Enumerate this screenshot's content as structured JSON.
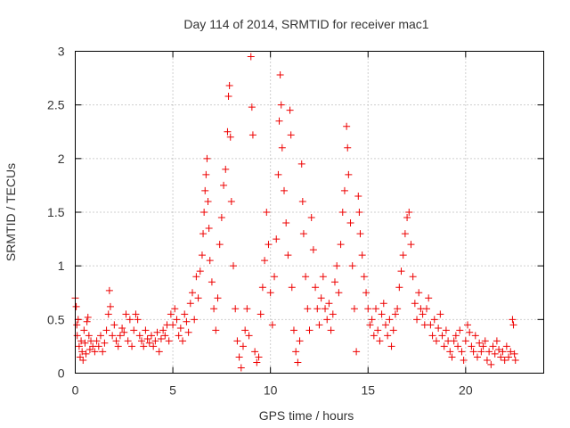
{
  "chart_data": {
    "type": "scatter",
    "title": "Day 114 of 2014, SRMTID for receiver mac1",
    "xlabel": "GPS time / hours",
    "ylabel": "SRMTID / TECUs",
    "xlim": [
      0,
      24
    ],
    "ylim": [
      0,
      3
    ],
    "xticks": [
      0,
      5,
      10,
      15,
      20
    ],
    "yticks": [
      0,
      0.5,
      1,
      1.5,
      2,
      2.5,
      3
    ],
    "xtick_labels": [
      "0",
      "5",
      "10",
      "15",
      "20"
    ],
    "ytick_labels": [
      "0",
      "0.5",
      "1",
      "1.5",
      "2",
      "2.5",
      "3"
    ],
    "grid": true,
    "marker": "+",
    "color": "#ee0000",
    "series": [
      {
        "name": "SRMTID",
        "points": [
          [
            0.0,
            0.7
          ],
          [
            0.05,
            0.62
          ],
          [
            0.08,
            0.45
          ],
          [
            0.1,
            0.35
          ],
          [
            0.15,
            0.5
          ],
          [
            0.2,
            0.25
          ],
          [
            0.25,
            0.15
          ],
          [
            0.3,
            0.3
          ],
          [
            0.35,
            0.2
          ],
          [
            0.4,
            0.12
          ],
          [
            0.45,
            0.4
          ],
          [
            0.5,
            0.28
          ],
          [
            0.55,
            0.18
          ],
          [
            0.6,
            0.48
          ],
          [
            0.65,
            0.52
          ],
          [
            0.7,
            0.35
          ],
          [
            0.75,
            0.22
          ],
          [
            0.8,
            0.3
          ],
          [
            0.9,
            0.25
          ],
          [
            1.0,
            0.2
          ],
          [
            1.1,
            0.3
          ],
          [
            1.2,
            0.25
          ],
          [
            1.3,
            0.35
          ],
          [
            1.4,
            0.2
          ],
          [
            1.5,
            0.28
          ],
          [
            1.6,
            0.4
          ],
          [
            1.7,
            0.55
          ],
          [
            1.75,
            0.77
          ],
          [
            1.8,
            0.62
          ],
          [
            1.9,
            0.35
          ],
          [
            2.0,
            0.45
          ],
          [
            2.1,
            0.3
          ],
          [
            2.2,
            0.25
          ],
          [
            2.3,
            0.35
          ],
          [
            2.4,
            0.42
          ],
          [
            2.5,
            0.38
          ],
          [
            2.6,
            0.55
          ],
          [
            2.7,
            0.3
          ],
          [
            2.8,
            0.5
          ],
          [
            2.9,
            0.25
          ],
          [
            3.0,
            0.4
          ],
          [
            3.1,
            0.55
          ],
          [
            3.2,
            0.5
          ],
          [
            3.3,
            0.35
          ],
          [
            3.4,
            0.3
          ],
          [
            3.5,
            0.25
          ],
          [
            3.6,
            0.4
          ],
          [
            3.7,
            0.32
          ],
          [
            3.8,
            0.28
          ],
          [
            3.9,
            0.35
          ],
          [
            4.0,
            0.25
          ],
          [
            4.1,
            0.3
          ],
          [
            4.2,
            0.38
          ],
          [
            4.3,
            0.2
          ],
          [
            4.4,
            0.32
          ],
          [
            4.5,
            0.4
          ],
          [
            4.6,
            0.35
          ],
          [
            4.7,
            0.45
          ],
          [
            4.8,
            0.3
          ],
          [
            4.9,
            0.55
          ],
          [
            5.0,
            0.45
          ],
          [
            5.1,
            0.6
          ],
          [
            5.2,
            0.5
          ],
          [
            5.3,
            0.35
          ],
          [
            5.4,
            0.42
          ],
          [
            5.5,
            0.3
          ],
          [
            5.6,
            0.55
          ],
          [
            5.7,
            0.48
          ],
          [
            5.8,
            0.38
          ],
          [
            5.9,
            0.65
          ],
          [
            6.0,
            0.75
          ],
          [
            6.1,
            0.5
          ],
          [
            6.2,
            0.9
          ],
          [
            6.3,
            0.7
          ],
          [
            6.4,
            0.95
          ],
          [
            6.5,
            1.1
          ],
          [
            6.55,
            1.3
          ],
          [
            6.6,
            1.5
          ],
          [
            6.65,
            1.7
          ],
          [
            6.7,
            1.85
          ],
          [
            6.75,
            2.0
          ],
          [
            6.8,
            1.6
          ],
          [
            6.85,
            1.35
          ],
          [
            6.9,
            1.05
          ],
          [
            7.0,
            0.85
          ],
          [
            7.1,
            0.6
          ],
          [
            7.2,
            0.4
          ],
          [
            7.3,
            0.7
          ],
          [
            7.4,
            1.2
          ],
          [
            7.5,
            1.45
          ],
          [
            7.6,
            1.75
          ],
          [
            7.7,
            1.9
          ],
          [
            7.8,
            2.25
          ],
          [
            7.85,
            2.58
          ],
          [
            7.9,
            2.68
          ],
          [
            7.95,
            2.2
          ],
          [
            8.0,
            1.6
          ],
          [
            8.1,
            1.0
          ],
          [
            8.2,
            0.6
          ],
          [
            8.3,
            0.3
          ],
          [
            8.4,
            0.15
          ],
          [
            8.5,
            0.05
          ],
          [
            8.6,
            0.25
          ],
          [
            8.7,
            0.4
          ],
          [
            8.8,
            0.6
          ],
          [
            8.9,
            0.35
          ],
          [
            9.0,
            2.95
          ],
          [
            9.05,
            2.48
          ],
          [
            9.1,
            2.22
          ],
          [
            9.2,
            0.2
          ],
          [
            9.3,
            0.1
          ],
          [
            9.4,
            0.15
          ],
          [
            9.5,
            0.55
          ],
          [
            9.6,
            0.8
          ],
          [
            9.7,
            1.05
          ],
          [
            9.8,
            1.5
          ],
          [
            9.9,
            1.2
          ],
          [
            10.0,
            0.75
          ],
          [
            10.1,
            0.45
          ],
          [
            10.2,
            0.9
          ],
          [
            10.3,
            1.25
          ],
          [
            10.4,
            1.85
          ],
          [
            10.45,
            2.35
          ],
          [
            10.5,
            2.78
          ],
          [
            10.55,
            2.5
          ],
          [
            10.6,
            2.1
          ],
          [
            10.7,
            1.7
          ],
          [
            10.8,
            1.4
          ],
          [
            10.9,
            1.1
          ],
          [
            11.0,
            2.45
          ],
          [
            11.05,
            2.22
          ],
          [
            11.1,
            0.8
          ],
          [
            11.2,
            0.4
          ],
          [
            11.3,
            0.2
          ],
          [
            11.4,
            0.1
          ],
          [
            11.5,
            0.3
          ],
          [
            11.6,
            1.95
          ],
          [
            11.65,
            1.6
          ],
          [
            11.7,
            1.3
          ],
          [
            11.8,
            0.9
          ],
          [
            11.9,
            0.6
          ],
          [
            12.0,
            0.4
          ],
          [
            12.1,
            1.45
          ],
          [
            12.2,
            1.15
          ],
          [
            12.3,
            0.8
          ],
          [
            12.4,
            0.6
          ],
          [
            12.5,
            0.45
          ],
          [
            12.6,
            0.7
          ],
          [
            12.7,
            0.9
          ],
          [
            12.8,
            0.6
          ],
          [
            12.9,
            0.5
          ],
          [
            13.0,
            0.65
          ],
          [
            13.1,
            0.4
          ],
          [
            13.2,
            0.55
          ],
          [
            13.3,
            0.85
          ],
          [
            13.4,
            1.0
          ],
          [
            13.5,
            0.75
          ],
          [
            13.6,
            1.2
          ],
          [
            13.7,
            1.5
          ],
          [
            13.8,
            1.7
          ],
          [
            13.9,
            2.3
          ],
          [
            13.95,
            2.1
          ],
          [
            14.0,
            1.85
          ],
          [
            14.1,
            1.4
          ],
          [
            14.2,
            1.0
          ],
          [
            14.3,
            0.6
          ],
          [
            14.4,
            0.2
          ],
          [
            14.5,
            1.65
          ],
          [
            14.55,
            1.5
          ],
          [
            14.6,
            1.3
          ],
          [
            14.7,
            1.1
          ],
          [
            14.8,
            0.9
          ],
          [
            14.9,
            0.75
          ],
          [
            15.0,
            0.6
          ],
          [
            15.1,
            0.45
          ],
          [
            15.2,
            0.5
          ],
          [
            15.3,
            0.35
          ],
          [
            15.4,
            0.6
          ],
          [
            15.5,
            0.4
          ],
          [
            15.6,
            0.3
          ],
          [
            15.7,
            0.55
          ],
          [
            15.8,
            0.65
          ],
          [
            15.9,
            0.45
          ],
          [
            16.0,
            0.35
          ],
          [
            16.1,
            0.5
          ],
          [
            16.2,
            0.25
          ],
          [
            16.3,
            0.4
          ],
          [
            16.4,
            0.55
          ],
          [
            16.5,
            0.6
          ],
          [
            16.6,
            0.8
          ],
          [
            16.7,
            0.95
          ],
          [
            16.8,
            1.1
          ],
          [
            16.9,
            1.3
          ],
          [
            17.0,
            1.45
          ],
          [
            17.1,
            1.5
          ],
          [
            17.2,
            1.2
          ],
          [
            17.3,
            0.9
          ],
          [
            17.4,
            0.65
          ],
          [
            17.5,
            0.5
          ],
          [
            17.6,
            0.75
          ],
          [
            17.7,
            0.6
          ],
          [
            17.8,
            0.55
          ],
          [
            17.9,
            0.45
          ],
          [
            18.0,
            0.6
          ],
          [
            18.1,
            0.7
          ],
          [
            18.2,
            0.45
          ],
          [
            18.3,
            0.35
          ],
          [
            18.4,
            0.5
          ],
          [
            18.5,
            0.3
          ],
          [
            18.6,
            0.42
          ],
          [
            18.7,
            0.55
          ],
          [
            18.8,
            0.35
          ],
          [
            18.9,
            0.25
          ],
          [
            19.0,
            0.4
          ],
          [
            19.1,
            0.3
          ],
          [
            19.2,
            0.2
          ],
          [
            19.3,
            0.15
          ],
          [
            19.4,
            0.3
          ],
          [
            19.5,
            0.35
          ],
          [
            19.6,
            0.25
          ],
          [
            19.7,
            0.4
          ],
          [
            19.8,
            0.2
          ],
          [
            19.9,
            0.12
          ],
          [
            20.0,
            0.3
          ],
          [
            20.1,
            0.45
          ],
          [
            20.2,
            0.38
          ],
          [
            20.3,
            0.25
          ],
          [
            20.4,
            0.2
          ],
          [
            20.5,
            0.35
          ],
          [
            20.6,
            0.15
          ],
          [
            20.7,
            0.28
          ],
          [
            20.8,
            0.2
          ],
          [
            20.9,
            0.25
          ],
          [
            21.0,
            0.3
          ],
          [
            21.1,
            0.12
          ],
          [
            21.2,
            0.2
          ],
          [
            21.3,
            0.08
          ],
          [
            21.4,
            0.25
          ],
          [
            21.5,
            0.18
          ],
          [
            21.6,
            0.3
          ],
          [
            21.7,
            0.22
          ],
          [
            21.8,
            0.15
          ],
          [
            21.9,
            0.2
          ],
          [
            22.0,
            0.12
          ],
          [
            22.1,
            0.25
          ],
          [
            22.2,
            0.15
          ],
          [
            22.3,
            0.2
          ],
          [
            22.4,
            0.5
          ],
          [
            22.45,
            0.45
          ],
          [
            22.5,
            0.18
          ],
          [
            22.55,
            0.12
          ]
        ]
      }
    ]
  }
}
